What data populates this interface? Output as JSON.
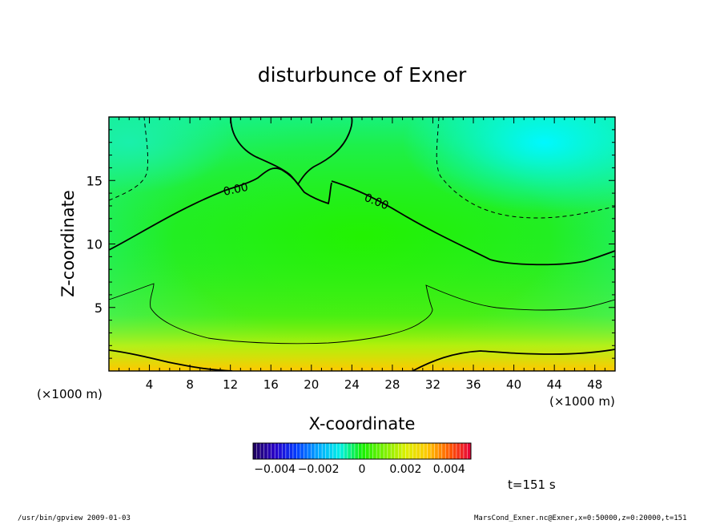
{
  "chart_data": {
    "type": "contour",
    "title": "disturbunce of Exner",
    "xlabel": "X-coordinate",
    "ylabel": "Z-coordinate",
    "x_units": "(×1000 m)",
    "xlim": [
      0,
      50
    ],
    "ylim": [
      0,
      20
    ],
    "x_ticks": [
      4,
      8,
      12,
      16,
      20,
      24,
      28,
      32,
      36,
      40,
      44,
      48
    ],
    "y_ticks": [
      5,
      10,
      15
    ],
    "contour_labels": [
      "0.00",
      "0.00"
    ],
    "colorbar": {
      "range": [
        -0.005,
        0.005
      ],
      "tick_labels": [
        "−0.004",
        "−0.002",
        "0",
        "0.002",
        "0.004"
      ],
      "tick_values": [
        -0.004,
        -0.002,
        0,
        0.002,
        0.004
      ]
    },
    "time_label": "t=151 s"
  },
  "footer": {
    "left": "/usr/bin/gpview   2009-01-03",
    "right": "MarsCond_Exner.nc@Exner,x=0:50000,z=0:20000,t=151"
  }
}
